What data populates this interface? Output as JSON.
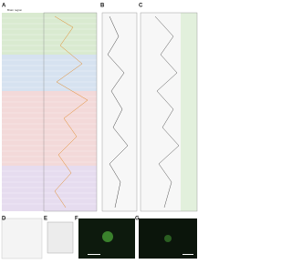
{
  "panels": {
    "a": "A",
    "b": "B",
    "c": "C",
    "d": "D",
    "e": "E",
    "f": "F",
    "g": "G"
  },
  "panel_a": {
    "header": "Brain region"
  }
}
